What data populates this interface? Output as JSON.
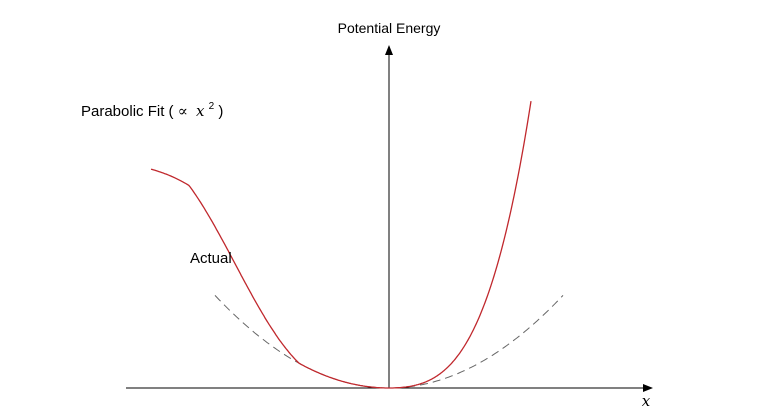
{
  "labels": {
    "y_axis": "Potential Energy",
    "x_axis": "x",
    "actual": "Actual",
    "parabolic_fit_prefix": "Parabolic Fit (",
    "parabolic_fit_symbol": "∝",
    "parabolic_fit_var": "x",
    "parabolic_fit_exponent": "2",
    "parabolic_fit_suffix": ")"
  },
  "colors": {
    "axis": "#000000",
    "actual_curve": "#c0282d",
    "parabolic_fit": "#666666"
  },
  "chart_data": {
    "type": "line",
    "grid": false,
    "x_ticks": false,
    "y_ticks": false,
    "series": [
      {
        "name": "Actual",
        "style": "solid"
      },
      {
        "name": "Parabolic Fit (∝ x2)",
        "style": "dashed"
      }
    ]
  }
}
